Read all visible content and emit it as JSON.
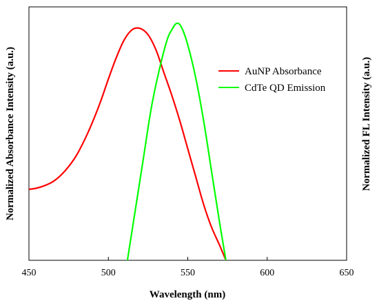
{
  "chart_data": {
    "type": "line",
    "xlabel": "Wavelength (nm)",
    "ylabel_left": "Normalized Absorbance Intensity (a.u.)",
    "ylabel_right": "Normalized FL Intensity (a.u.)",
    "xlim": [
      450,
      650
    ],
    "ylim": [
      0,
      1.0
    ],
    "xticks": [
      450,
      500,
      550,
      600,
      650
    ],
    "grid": false,
    "legend_position": "top-right",
    "series": [
      {
        "name": "AuNP Absorbance",
        "color": "#ff0000",
        "x": [
          450,
          455,
          460,
          465,
          470,
          475,
          480,
          485,
          490,
          495,
          500,
          505,
          510,
          515,
          520,
          525,
          530,
          535,
          540,
          545,
          550,
          555,
          560,
          565,
          570,
          574
        ],
        "y": [
          0.28,
          0.285,
          0.295,
          0.31,
          0.335,
          0.37,
          0.415,
          0.475,
          0.545,
          0.625,
          0.715,
          0.8,
          0.87,
          0.91,
          0.915,
          0.89,
          0.83,
          0.74,
          0.65,
          0.55,
          0.44,
          0.33,
          0.22,
          0.13,
          0.06,
          0.0
        ]
      },
      {
        "name": "CdTe QD Emission",
        "color": "#00ff00",
        "x": [
          512,
          517,
          522,
          527,
          532,
          537,
          540,
          543,
          546,
          550,
          555,
          560,
          565,
          570,
          574
        ],
        "y": [
          0.0,
          0.2,
          0.4,
          0.6,
          0.75,
          0.87,
          0.91,
          0.935,
          0.92,
          0.85,
          0.72,
          0.55,
          0.35,
          0.15,
          0.0
        ]
      }
    ]
  }
}
